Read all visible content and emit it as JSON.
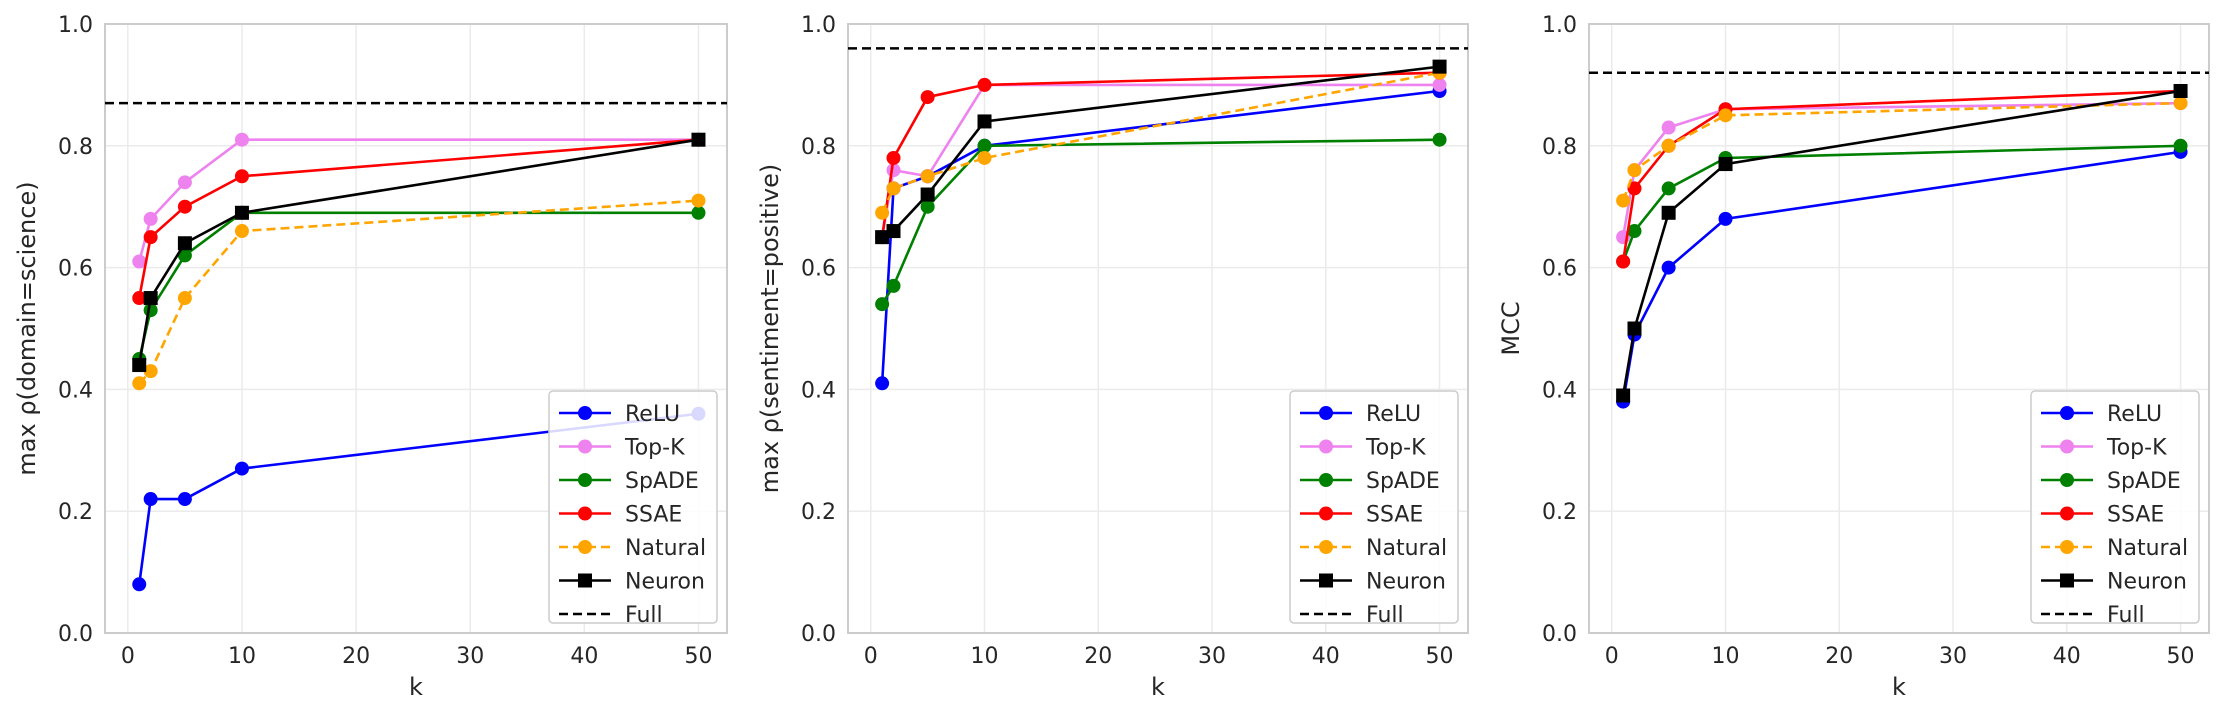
{
  "chart_data": [
    {
      "type": "line",
      "title": "",
      "xlabel": "k",
      "ylabel": "max ρ(domain=science)",
      "xlim": [
        -2,
        52.5
      ],
      "ylim": [
        0,
        1
      ],
      "xticks": [
        0,
        10,
        20,
        30,
        40,
        50
      ],
      "yticks": [
        0.0,
        0.2,
        0.4,
        0.6,
        0.8,
        1.0
      ],
      "ytick_labels": [
        "0.0",
        "0.2",
        "0.4",
        "0.6",
        "0.8",
        "1.0"
      ],
      "grid": true,
      "legend_location": "lower-right",
      "full_line": 0.87,
      "x": [
        1,
        2,
        5,
        10,
        50
      ],
      "series": [
        {
          "name": "ReLU",
          "color": "#0000ff",
          "marker": "circle",
          "dashed": false,
          "values": [
            0.08,
            0.22,
            0.22,
            0.27,
            0.36
          ]
        },
        {
          "name": "Top-K",
          "color": "#ee82ee",
          "marker": "circle",
          "dashed": false,
          "values": [
            0.61,
            0.68,
            0.74,
            0.81,
            0.81
          ]
        },
        {
          "name": "SpADE",
          "color": "#008000",
          "marker": "circle",
          "dashed": false,
          "values": [
            0.45,
            0.53,
            0.62,
            0.69,
            0.69
          ]
        },
        {
          "name": "SSAE",
          "color": "#ff0000",
          "marker": "circle",
          "dashed": false,
          "values": [
            0.55,
            0.65,
            0.7,
            0.75,
            0.81
          ]
        },
        {
          "name": "Natural",
          "color": "#ffa500",
          "marker": "circle",
          "dashed": true,
          "values": [
            0.41,
            0.43,
            0.55,
            0.66,
            0.71
          ]
        },
        {
          "name": "Neuron",
          "color": "#000000",
          "marker": "square",
          "dashed": false,
          "values": [
            0.44,
            0.55,
            0.64,
            0.69,
            0.81
          ]
        }
      ],
      "legend": [
        "ReLU",
        "Top-K",
        "SpADE",
        "SSAE",
        "Natural",
        "Neuron",
        "Full"
      ]
    },
    {
      "type": "line",
      "title": "",
      "xlabel": "k",
      "ylabel": "max ρ(sentiment=positive)",
      "xlim": [
        -2,
        52.5
      ],
      "ylim": [
        0,
        1
      ],
      "xticks": [
        0,
        10,
        20,
        30,
        40,
        50
      ],
      "yticks": [
        0.0,
        0.2,
        0.4,
        0.6,
        0.8,
        1.0
      ],
      "ytick_labels": [
        "0.0",
        "0.2",
        "0.4",
        "0.6",
        "0.8",
        "1.0"
      ],
      "grid": true,
      "legend_location": "lower-right",
      "full_line": 0.96,
      "x": [
        1,
        2,
        5,
        10,
        50
      ],
      "series": [
        {
          "name": "ReLU",
          "color": "#0000ff",
          "marker": "circle",
          "dashed": false,
          "values": [
            0.41,
            0.73,
            0.75,
            0.8,
            0.89
          ]
        },
        {
          "name": "Top-K",
          "color": "#ee82ee",
          "marker": "circle",
          "dashed": false,
          "values": [
            0.65,
            0.76,
            0.75,
            0.9,
            0.9
          ]
        },
        {
          "name": "SpADE",
          "color": "#008000",
          "marker": "circle",
          "dashed": false,
          "values": [
            0.54,
            0.57,
            0.7,
            0.8,
            0.81
          ]
        },
        {
          "name": "SSAE",
          "color": "#ff0000",
          "marker": "circle",
          "dashed": false,
          "values": [
            0.65,
            0.78,
            0.88,
            0.9,
            0.92
          ]
        },
        {
          "name": "Natural",
          "color": "#ffa500",
          "marker": "circle",
          "dashed": true,
          "values": [
            0.69,
            0.73,
            0.75,
            0.78,
            0.92
          ]
        },
        {
          "name": "Neuron",
          "color": "#000000",
          "marker": "square",
          "dashed": false,
          "values": [
            0.65,
            0.66,
            0.72,
            0.84,
            0.93
          ]
        }
      ],
      "legend": [
        "ReLU",
        "Top-K",
        "SpADE",
        "SSAE",
        "Natural",
        "Neuron",
        "Full"
      ]
    },
    {
      "type": "line",
      "title": "",
      "xlabel": "k",
      "ylabel": "MCC",
      "xlim": [
        -2,
        52.5
      ],
      "ylim": [
        0,
        1
      ],
      "xticks": [
        0,
        10,
        20,
        30,
        40,
        50
      ],
      "yticks": [
        0.0,
        0.2,
        0.4,
        0.6,
        0.8,
        1.0
      ],
      "ytick_labels": [
        "0.0",
        "0.2",
        "0.4",
        "0.6",
        "0.8",
        "1.0"
      ],
      "grid": true,
      "legend_location": "lower-right",
      "full_line": 0.92,
      "x": [
        1,
        2,
        5,
        10,
        50
      ],
      "series": [
        {
          "name": "ReLU",
          "color": "#0000ff",
          "marker": "circle",
          "dashed": false,
          "values": [
            0.38,
            0.49,
            0.6,
            0.68,
            0.79
          ]
        },
        {
          "name": "Top-K",
          "color": "#ee82ee",
          "marker": "circle",
          "dashed": false,
          "values": [
            0.65,
            0.76,
            0.83,
            0.86,
            0.87
          ]
        },
        {
          "name": "SpADE",
          "color": "#008000",
          "marker": "circle",
          "dashed": false,
          "values": [
            0.61,
            0.66,
            0.73,
            0.78,
            0.8
          ]
        },
        {
          "name": "SSAE",
          "color": "#ff0000",
          "marker": "circle",
          "dashed": false,
          "values": [
            0.61,
            0.73,
            0.8,
            0.86,
            0.89
          ]
        },
        {
          "name": "Natural",
          "color": "#ffa500",
          "marker": "circle",
          "dashed": true,
          "values": [
            0.71,
            0.76,
            0.8,
            0.85,
            0.87
          ]
        },
        {
          "name": "Neuron",
          "color": "#000000",
          "marker": "square",
          "dashed": false,
          "values": [
            0.39,
            0.5,
            0.69,
            0.77,
            0.89
          ]
        }
      ],
      "legend": [
        "ReLU",
        "Top-K",
        "SpADE",
        "SSAE",
        "Natural",
        "Neuron",
        "Full"
      ]
    }
  ]
}
